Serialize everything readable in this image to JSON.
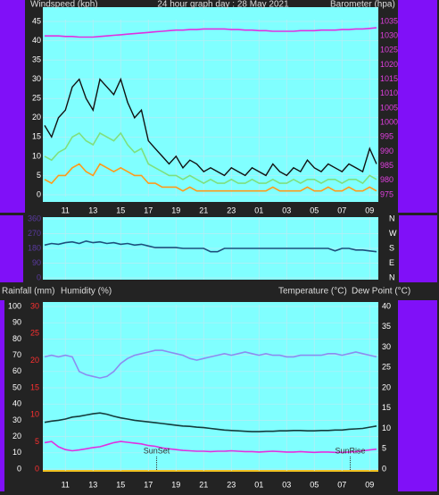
{
  "chart_data": [
    {
      "type": "line",
      "title": "24 hour graph day : 28 May 2021",
      "ylabel": "Windspeed (kph)",
      "y2label": "Barometer (hpa)",
      "x": [
        9.5,
        10,
        10.5,
        11,
        11.5,
        12,
        12.5,
        13,
        13.5,
        14,
        14.5,
        15,
        15.5,
        16,
        16.5,
        17,
        17.5,
        18,
        18.5,
        19,
        19.5,
        20,
        20.5,
        21,
        21.5,
        22,
        22.5,
        23,
        23.5,
        24,
        24.5,
        25,
        25.5,
        26,
        26.5,
        27,
        27.5,
        28,
        28.5,
        29,
        29.5,
        30,
        30.5,
        31,
        31.5,
        32,
        32.5,
        33,
        33.5
      ],
      "xlim": [
        9.5,
        33.5
      ],
      "xticks": [
        11,
        13,
        15,
        17,
        19,
        21,
        23,
        {
          "value": 25,
          "label": "01"
        },
        {
          "value": 27,
          "label": "03"
        },
        {
          "value": 29,
          "label": "05"
        },
        {
          "value": 31,
          "label": "07"
        },
        {
          "value": 33,
          "label": "09"
        }
      ],
      "ylim": [
        0,
        45
      ],
      "yticks": [
        0,
        5,
        10,
        15,
        20,
        25,
        30,
        35,
        40,
        45
      ],
      "y2lim": [
        975,
        1035
      ],
      "y2ticks": [
        975,
        980,
        985,
        990,
        995,
        1000,
        1005,
        1010,
        1015,
        1020,
        1025,
        1030,
        1035
      ],
      "grid": true,
      "series": [
        {
          "color": "#111111",
          "values": [
            18,
            15,
            20,
            22,
            28,
            30,
            25,
            22,
            30,
            28,
            26,
            30,
            24,
            20,
            22,
            14,
            12,
            10,
            8,
            10,
            7,
            9,
            8,
            6,
            7,
            6,
            5,
            7,
            6,
            5,
            7,
            6,
            5,
            8,
            6,
            5,
            7,
            6,
            9,
            7,
            6,
            8,
            7,
            6,
            8,
            7,
            6,
            12,
            8
          ]
        },
        {
          "color": "#7ee07e",
          "values": [
            10,
            9,
            11,
            12,
            15,
            16,
            14,
            13,
            16,
            15,
            14,
            16,
            13,
            11,
            12,
            8,
            7,
            6,
            5,
            5,
            4,
            5,
            4,
            3,
            4,
            3,
            3,
            4,
            3,
            3,
            4,
            3,
            3,
            4,
            3,
            3,
            4,
            3,
            4,
            4,
            3,
            4,
            4,
            3,
            4,
            4,
            3,
            5,
            4
          ]
        },
        {
          "color": "#ff9a1a",
          "values": [
            4,
            3,
            5,
            5,
            7,
            8,
            6,
            5,
            8,
            7,
            6,
            7,
            6,
            5,
            5,
            3,
            3,
            2,
            2,
            2,
            1,
            2,
            1,
            1,
            1,
            1,
            1,
            1,
            1,
            1,
            1,
            1,
            1,
            2,
            1,
            1,
            1,
            1,
            2,
            1,
            1,
            2,
            1,
            1,
            2,
            1,
            1,
            2,
            1
          ]
        },
        {
          "color": "#e030e0",
          "axis": "y2",
          "values": [
            1030,
            1030,
            1030,
            1029.8,
            1029.8,
            1029.6,
            1029.6,
            1029.6,
            1029.8,
            1030,
            1030.2,
            1030.4,
            1030.6,
            1030.8,
            1031,
            1031.2,
            1031.4,
            1031.6,
            1031.8,
            1032,
            1032,
            1032.2,
            1032.2,
            1032.4,
            1032.4,
            1032.4,
            1032.4,
            1032.2,
            1032.2,
            1032,
            1032,
            1031.8,
            1031.8,
            1031.6,
            1031.6,
            1031.6,
            1031.6,
            1031.8,
            1031.8,
            1031.8,
            1032,
            1032,
            1032,
            1032.2,
            1032.2,
            1032.4,
            1032.4,
            1032.6,
            1032.8
          ]
        }
      ]
    },
    {
      "type": "line",
      "x": [
        9.5,
        10,
        10.5,
        11,
        11.5,
        12,
        12.5,
        13,
        13.5,
        14,
        14.5,
        15,
        15.5,
        16,
        16.5,
        17,
        17.5,
        18,
        18.5,
        19,
        19.5,
        20,
        20.5,
        21,
        21.5,
        22,
        22.5,
        23,
        23.5,
        24,
        24.5,
        25,
        25.5,
        26,
        26.5,
        27,
        27.5,
        28,
        28.5,
        29,
        29.5,
        30,
        30.5,
        31,
        31.5,
        32,
        32.5,
        33,
        33.5
      ],
      "xlim": [
        9.5,
        33.5
      ],
      "xticks": [
        11,
        13,
        15,
        17,
        19,
        21,
        23,
        25,
        27,
        29,
        31,
        33
      ],
      "ylim": [
        0,
        360
      ],
      "yticks": [
        360,
        270,
        180,
        90,
        0
      ],
      "y2ticks": [
        {
          "value": 360,
          "label": "N"
        },
        {
          "value": 270,
          "label": "W"
        },
        {
          "value": 180,
          "label": "S"
        },
        {
          "value": 90,
          "label": "E"
        },
        {
          "value": 0,
          "label": "N"
        }
      ],
      "grid": true,
      "series": [
        {
          "color": "#1d4f7c",
          "values": [
            200,
            210,
            205,
            215,
            220,
            210,
            225,
            215,
            220,
            210,
            215,
            205,
            210,
            200,
            205,
            195,
            185,
            185,
            185,
            185,
            180,
            180,
            180,
            180,
            160,
            160,
            180,
            180,
            180,
            180,
            180,
            180,
            180,
            180,
            180,
            180,
            180,
            180,
            180,
            180,
            180,
            180,
            165,
            180,
            180,
            170,
            170,
            165,
            160
          ]
        }
      ]
    },
    {
      "type": "line",
      "ylabel": "Humidity (%)",
      "y3label": "Rainfall (mm)",
      "y2label": "Temperature (°C)",
      "y2label2": "Dew Point (°C)",
      "x": [
        9.5,
        10,
        10.5,
        11,
        11.5,
        12,
        12.5,
        13,
        13.5,
        14,
        14.5,
        15,
        15.5,
        16,
        16.5,
        17,
        17.5,
        18,
        18.5,
        19,
        19.5,
        20,
        20.5,
        21,
        21.5,
        22,
        22.5,
        23,
        23.5,
        24,
        24.5,
        25,
        25.5,
        26,
        26.5,
        27,
        27.5,
        28,
        28.5,
        29,
        29.5,
        30,
        30.5,
        31,
        31.5,
        32,
        32.5,
        33,
        33.5
      ],
      "xlim": [
        9.5,
        33.5
      ],
      "xticks": [
        11,
        13,
        15,
        17,
        19,
        21,
        23,
        {
          "value": 25,
          "label": "01"
        },
        {
          "value": 27,
          "label": "03"
        },
        {
          "value": 29,
          "label": "05"
        },
        {
          "value": 31,
          "label": "07"
        },
        {
          "value": 33,
          "label": "09"
        }
      ],
      "ylim": [
        0,
        100
      ],
      "yticks": [
        0,
        10,
        20,
        30,
        40,
        50,
        60,
        70,
        80,
        90,
        100
      ],
      "y2lim": [
        0,
        40
      ],
      "y2ticks": [
        0,
        5,
        10,
        15,
        20,
        25,
        30,
        35,
        40
      ],
      "y3lim": [
        0,
        30
      ],
      "y3ticks": [
        0,
        5,
        10,
        15,
        20,
        25,
        30
      ],
      "grid": true,
      "annotations": [
        {
          "text": "SunSet",
          "x": 17.6
        },
        {
          "text": "SunRise",
          "x": 31.6
        }
      ],
      "series": [
        {
          "color": "#8c8cf0",
          "values": [
            69,
            70,
            69,
            70,
            69,
            60,
            58,
            57,
            56,
            57,
            60,
            65,
            68,
            70,
            71,
            72,
            73,
            73,
            72,
            71,
            70,
            68,
            67,
            68,
            69,
            70,
            71,
            70,
            71,
            72,
            71,
            70,
            71,
            70,
            70,
            69,
            69,
            70,
            70,
            70,
            70,
            71,
            71,
            70,
            71,
            72,
            71,
            70,
            69
          ]
        },
        {
          "color": "#143c3c",
          "axis": "y2",
          "values": [
            11.5,
            11.8,
            12,
            12.3,
            12.8,
            13,
            13.3,
            13.6,
            13.8,
            13.5,
            13,
            12.6,
            12.3,
            12,
            11.8,
            11.6,
            11.4,
            11.2,
            11,
            10.8,
            10.6,
            10.5,
            10.3,
            10.2,
            10,
            9.8,
            9.6,
            9.5,
            9.4,
            9.3,
            9.2,
            9.2,
            9.3,
            9.3,
            9.4,
            9.4,
            9.5,
            9.5,
            9.4,
            9.4,
            9.5,
            9.5,
            9.6,
            9.6,
            9.8,
            9.9,
            10,
            10.3,
            10.6
          ]
        },
        {
          "color": "#e030e0",
          "axis": "y2",
          "values": [
            6.5,
            6.8,
            5.5,
            4.8,
            4.5,
            4.7,
            5,
            5.3,
            5.5,
            6,
            6.5,
            6.8,
            6.6,
            6.4,
            6.2,
            5.8,
            5.6,
            5.2,
            5,
            4.8,
            4.6,
            4.5,
            4.4,
            4.4,
            4.3,
            4.4,
            4.4,
            4.5,
            4.4,
            4.3,
            4.3,
            4.2,
            4.3,
            4.4,
            4.3,
            4.2,
            4.2,
            4.3,
            4.2,
            4.1,
            4.2,
            4.2,
            4.1,
            4.1,
            4.2,
            4.3,
            4.5,
            4.7,
            4.9
          ]
        }
      ]
    }
  ]
}
